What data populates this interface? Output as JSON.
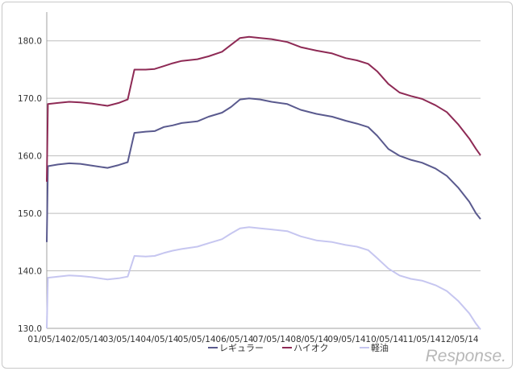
{
  "chart_data": {
    "type": "line",
    "x": [
      "01/05/14",
      "02/05/14",
      "03/05/14",
      "04/05/14",
      "05/05/14",
      "06/05/14",
      "07/05/14",
      "08/05/14",
      "09/05/14",
      "10/05/14",
      "11/05/14",
      "12/05/14"
    ],
    "x_tick_labels": [
      "01/05/14",
      "02/05/14",
      "03/05/14",
      "04/05/14",
      "05/05/14",
      "06/05/14",
      "07/05/14",
      "08/05/14",
      "09/05/14",
      "10/05/14",
      "11/05/14",
      "12/05/14"
    ],
    "ylim": [
      130,
      185
    ],
    "yticks": [
      "130.0",
      "140.0",
      "150.0",
      "160.0",
      "170.0",
      "180.0"
    ],
    "grid": "y-major",
    "legend_position": "bottom",
    "series": [
      {
        "name": "レギュラー",
        "color": "#5a5a8e",
        "points": [
          [
            0,
            145.0
          ],
          [
            0.05,
            158.2
          ],
          [
            0.5,
            158.5
          ],
          [
            1.0,
            158.7
          ],
          [
            1.5,
            158.6
          ],
          [
            2.0,
            158.3
          ],
          [
            2.7,
            157.9
          ],
          [
            3.2,
            158.4
          ],
          [
            3.6,
            158.9
          ],
          [
            3.9,
            164.0
          ],
          [
            4.4,
            164.2
          ],
          [
            4.8,
            164.3
          ],
          [
            5.2,
            165.0
          ],
          [
            5.6,
            165.3
          ],
          [
            6.0,
            165.7
          ],
          [
            6.7,
            166.0
          ],
          [
            7.2,
            166.8
          ],
          [
            7.8,
            167.5
          ],
          [
            8.2,
            168.5
          ],
          [
            8.6,
            169.8
          ],
          [
            9.0,
            170.0
          ],
          [
            9.5,
            169.8
          ],
          [
            10.0,
            169.4
          ],
          [
            10.7,
            169.0
          ],
          [
            11.3,
            168.0
          ],
          [
            12.0,
            167.3
          ],
          [
            12.7,
            166.8
          ],
          [
            13.3,
            166.1
          ],
          [
            13.8,
            165.6
          ],
          [
            14.3,
            165.0
          ],
          [
            14.7,
            163.5
          ],
          [
            15.2,
            161.2
          ],
          [
            15.7,
            160.0
          ],
          [
            16.2,
            159.3
          ],
          [
            16.7,
            158.8
          ],
          [
            17.3,
            157.8
          ],
          [
            17.8,
            156.5
          ],
          [
            18.3,
            154.5
          ],
          [
            18.8,
            152.0
          ],
          [
            19.1,
            150.0
          ],
          [
            19.3,
            149.0
          ]
        ]
      },
      {
        "name": "ハイオク",
        "color": "#8e2a55",
        "points": [
          [
            0,
            155.5
          ],
          [
            0.05,
            169.0
          ],
          [
            0.5,
            169.2
          ],
          [
            1.0,
            169.4
          ],
          [
            1.5,
            169.3
          ],
          [
            2.0,
            169.1
          ],
          [
            2.7,
            168.7
          ],
          [
            3.2,
            169.2
          ],
          [
            3.6,
            169.8
          ],
          [
            3.9,
            175.0
          ],
          [
            4.4,
            175.0
          ],
          [
            4.8,
            175.1
          ],
          [
            5.2,
            175.6
          ],
          [
            5.6,
            176.1
          ],
          [
            6.0,
            176.5
          ],
          [
            6.7,
            176.8
          ],
          [
            7.2,
            177.3
          ],
          [
            7.8,
            178.1
          ],
          [
            8.2,
            179.3
          ],
          [
            8.6,
            180.5
          ],
          [
            9.0,
            180.7
          ],
          [
            9.5,
            180.5
          ],
          [
            10.0,
            180.3
          ],
          [
            10.7,
            179.8
          ],
          [
            11.3,
            178.9
          ],
          [
            12.0,
            178.3
          ],
          [
            12.7,
            177.8
          ],
          [
            13.3,
            177.0
          ],
          [
            13.8,
            176.6
          ],
          [
            14.3,
            176.0
          ],
          [
            14.7,
            174.7
          ],
          [
            15.2,
            172.5
          ],
          [
            15.7,
            171.0
          ],
          [
            16.2,
            170.4
          ],
          [
            16.7,
            169.9
          ],
          [
            17.3,
            168.8
          ],
          [
            17.8,
            167.6
          ],
          [
            18.3,
            165.5
          ],
          [
            18.8,
            163.0
          ],
          [
            19.1,
            161.2
          ],
          [
            19.3,
            160.1
          ]
        ]
      },
      {
        "name": "軽油",
        "color": "#c6c6f0",
        "points": [
          [
            0,
            130.0
          ],
          [
            0.05,
            138.8
          ],
          [
            0.5,
            139.0
          ],
          [
            1.0,
            139.2
          ],
          [
            1.5,
            139.1
          ],
          [
            2.0,
            138.9
          ],
          [
            2.7,
            138.5
          ],
          [
            3.2,
            138.7
          ],
          [
            3.6,
            139.0
          ],
          [
            3.9,
            142.6
          ],
          [
            4.4,
            142.5
          ],
          [
            4.8,
            142.6
          ],
          [
            5.2,
            143.1
          ],
          [
            5.6,
            143.5
          ],
          [
            6.0,
            143.8
          ],
          [
            6.7,
            144.2
          ],
          [
            7.2,
            144.8
          ],
          [
            7.8,
            145.5
          ],
          [
            8.2,
            146.5
          ],
          [
            8.6,
            147.4
          ],
          [
            9.0,
            147.6
          ],
          [
            9.5,
            147.4
          ],
          [
            10.0,
            147.2
          ],
          [
            10.7,
            146.9
          ],
          [
            11.3,
            146.0
          ],
          [
            12.0,
            145.3
          ],
          [
            12.7,
            145.0
          ],
          [
            13.3,
            144.5
          ],
          [
            13.8,
            144.2
          ],
          [
            14.3,
            143.6
          ],
          [
            14.7,
            142.2
          ],
          [
            15.2,
            140.4
          ],
          [
            15.7,
            139.2
          ],
          [
            16.2,
            138.6
          ],
          [
            16.7,
            138.3
          ],
          [
            17.3,
            137.5
          ],
          [
            17.8,
            136.5
          ],
          [
            18.3,
            134.8
          ],
          [
            18.8,
            132.6
          ],
          [
            19.1,
            130.8
          ],
          [
            19.3,
            129.8
          ]
        ]
      }
    ]
  },
  "watermark_text": "Response."
}
